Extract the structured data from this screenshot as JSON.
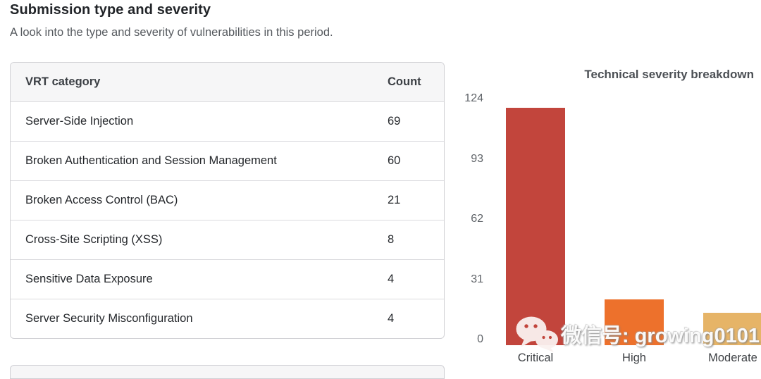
{
  "header": {
    "title": "Submission type and severity",
    "subtitle": "A look into the type and severity of vulnerabilities in this period."
  },
  "chart_data": [
    {
      "type": "table",
      "columns": [
        "VRT category",
        "Count"
      ],
      "rows": [
        {
          "category": "Server-Side Injection",
          "count": 69
        },
        {
          "category": "Broken Authentication and Session Management",
          "count": 60
        },
        {
          "category": "Broken Access Control (BAC)",
          "count": 21
        },
        {
          "category": "Cross-Site Scripting (XSS)",
          "count": 8
        },
        {
          "category": "Sensitive Data Exposure",
          "count": 4
        },
        {
          "category": "Server Security Misconfiguration",
          "count": 4
        }
      ]
    },
    {
      "type": "bar",
      "title": "Technical severity breakdown",
      "categories": [
        "Critical",
        "High",
        "Moderate"
      ],
      "values": [
        124,
        24,
        17
      ],
      "bar_colors": [
        "#c2453c",
        "#ed712c",
        "#e6b467"
      ],
      "yticks": [
        0,
        31,
        62,
        93,
        124
      ],
      "ylim": [
        0,
        124
      ],
      "xlabel": "",
      "ylabel": "",
      "grid": false,
      "legend": false
    }
  ],
  "watermark": {
    "icon": "wechat-icon",
    "text": "微信号: growing0101"
  }
}
